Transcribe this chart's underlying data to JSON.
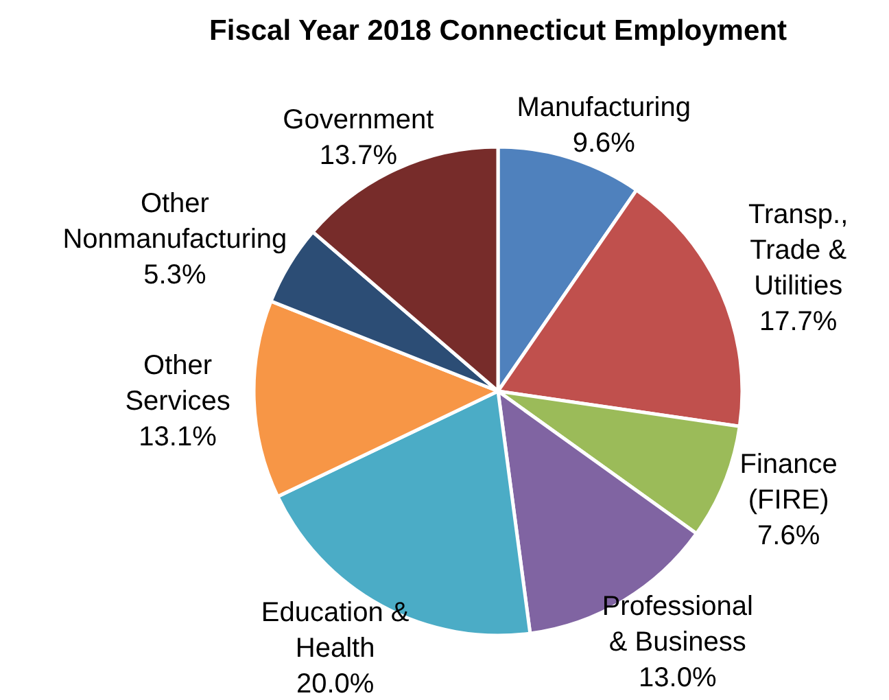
{
  "chart_data": {
    "type": "pie",
    "title": "Fiscal Year 2018 Connecticut Employment",
    "categories": [
      "Manufacturing",
      "Transp.,\nTrade &\nUtilities",
      "Finance\n(FIRE)",
      "Professional\n& Business",
      "Education &\nHealth",
      "Other\nServices",
      "Other\nNonmanufacturing",
      "Government"
    ],
    "values": [
      9.6,
      17.7,
      7.6,
      13.0,
      20.0,
      13.1,
      5.3,
      13.7
    ],
    "value_labels": [
      "9.6%",
      "17.7%",
      "7.6%",
      "13.0%",
      "20.0%",
      "13.1%",
      "5.3%",
      "13.7%"
    ],
    "colors": [
      "#4f81bd",
      "#c0504d",
      "#9bbb59",
      "#8064a2",
      "#4bacc6",
      "#f79646",
      "#2c4d75",
      "#772c2a"
    ]
  }
}
